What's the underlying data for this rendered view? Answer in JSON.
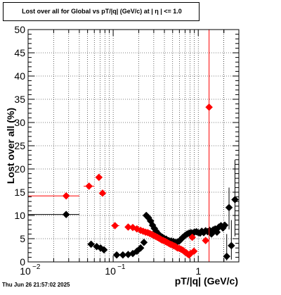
{
  "title": "Lost over all for Global vs pT/|q| (GeV/c) at |  η  | <= 1.0",
  "timestamp": "Thu Jun 26 21:57:02 2025",
  "colors": {
    "black_series": "#000000",
    "red_series": "#ff0000",
    "grid": "#000000"
  },
  "chart_data": {
    "type": "scatter",
    "title": "Lost over all for Global vs pT/|q| (GeV/c) at |  η  | <= 1.0",
    "xlabel": "pT/|q| (GeV/c)",
    "ylabel": "Lost over all (%)",
    "x_scale": "log",
    "xlim": [
      0.01,
      3.0
    ],
    "ylim": [
      0,
      50
    ],
    "grid": true,
    "x_tick_labels": [
      "10",
      "10",
      "1"
    ],
    "x_tick_exponents": [
      "−2",
      "−1",
      ""
    ],
    "y_ticks": [
      0,
      5,
      10,
      15,
      20,
      25,
      30,
      35,
      40,
      45,
      50
    ],
    "series": [
      {
        "color": "#000000",
        "points": [
          {
            "x": 0.028,
            "y": 10.2,
            "xlo": 0.01,
            "xhi": 0.04,
            "ylo": 10.2,
            "yhi": 10.2
          },
          {
            "x": 0.055,
            "y": 3.8,
            "xlo": 0.055,
            "xhi": 0.055,
            "ylo": 3.8,
            "yhi": 3.8
          },
          {
            "x": 0.064,
            "y": 3.3
          },
          {
            "x": 0.071,
            "y": 3.0
          },
          {
            "x": 0.078,
            "y": 2.6
          },
          {
            "x": 0.11,
            "y": 1.5
          },
          {
            "x": 0.13,
            "y": 1.5
          },
          {
            "x": 0.15,
            "y": 1.6
          },
          {
            "x": 0.17,
            "y": 1.8
          },
          {
            "x": 0.19,
            "y": 2.3
          },
          {
            "x": 0.21,
            "y": 3.0
          },
          {
            "x": 0.23,
            "y": 4.2
          },
          {
            "x": 0.245,
            "y": 10.0
          },
          {
            "x": 0.26,
            "y": 9.5
          },
          {
            "x": 0.275,
            "y": 8.8
          },
          {
            "x": 0.29,
            "y": 7.9
          },
          {
            "x": 0.305,
            "y": 7.2
          },
          {
            "x": 0.32,
            "y": 6.6
          },
          {
            "x": 0.34,
            "y": 6.0
          },
          {
            "x": 0.36,
            "y": 5.6
          },
          {
            "x": 0.38,
            "y": 5.3
          },
          {
            "x": 0.4,
            "y": 5.0
          },
          {
            "x": 0.42,
            "y": 4.9
          },
          {
            "x": 0.45,
            "y": 4.6
          },
          {
            "x": 0.48,
            "y": 4.5
          },
          {
            "x": 0.51,
            "y": 4.4
          },
          {
            "x": 0.54,
            "y": 4.2
          },
          {
            "x": 0.57,
            "y": 4.3
          },
          {
            "x": 0.6,
            "y": 4.5
          },
          {
            "x": 0.63,
            "y": 4.9
          },
          {
            "x": 0.66,
            "y": 5.3
          },
          {
            "x": 0.7,
            "y": 5.7
          },
          {
            "x": 0.74,
            "y": 6.0
          },
          {
            "x": 0.78,
            "y": 6.2
          },
          {
            "x": 0.82,
            "y": 6.3
          },
          {
            "x": 0.86,
            "y": 6.2
          },
          {
            "x": 0.9,
            "y": 6.4
          },
          {
            "x": 0.95,
            "y": 6.5
          },
          {
            "x": 1.0,
            "y": 6.3
          },
          {
            "x": 1.05,
            "y": 6.2
          },
          {
            "x": 1.1,
            "y": 6.6
          },
          {
            "x": 1.16,
            "y": 6.3
          },
          {
            "x": 1.22,
            "y": 6.7
          },
          {
            "x": 1.29,
            "y": 6.5
          },
          {
            "x": 1.36,
            "y": 6.8
          },
          {
            "x": 1.43,
            "y": 6.0
          },
          {
            "x": 1.5,
            "y": 6.9
          },
          {
            "x": 1.58,
            "y": 7.1
          },
          {
            "x": 1.66,
            "y": 6.4
          },
          {
            "x": 1.75,
            "y": 7.5
          },
          {
            "x": 1.85,
            "y": 7.8
          },
          {
            "x": 1.95,
            "y": 7.3
          },
          {
            "x": 2.05,
            "y": 7.9
          },
          {
            "x": 2.16,
            "y": 1.2,
            "ylo": 0.3,
            "yhi": 6.0
          },
          {
            "x": 2.3,
            "y": 11.7,
            "ylo": 7.0,
            "yhi": 16.0
          },
          {
            "x": 2.45,
            "y": 3.5,
            "ylo": 0.5,
            "yhi": 9.0
          },
          {
            "x": 2.7,
            "y": 13.4,
            "ylo": 5.5,
            "yhi": 22.0
          }
        ]
      },
      {
        "color": "#ff0000",
        "points": [
          {
            "x": 0.028,
            "y": 14.2,
            "xlo": 0.01,
            "xhi": 0.04
          },
          {
            "x": 0.052,
            "y": 16.3,
            "xlo": 0.045,
            "xhi": 0.06
          },
          {
            "x": 0.068,
            "y": 18.2
          },
          {
            "x": 0.075,
            "y": 14.8
          },
          {
            "x": 0.105,
            "y": 7.8,
            "xlo": 0.095,
            "xhi": 0.118
          },
          {
            "x": 0.15,
            "y": 7.5
          },
          {
            "x": 0.17,
            "y": 7.4
          },
          {
            "x": 0.19,
            "y": 7.1
          },
          {
            "x": 0.21,
            "y": 6.8
          },
          {
            "x": 0.225,
            "y": 6.6
          },
          {
            "x": 0.24,
            "y": 6.4
          },
          {
            "x": 0.255,
            "y": 6.3
          },
          {
            "x": 0.27,
            "y": 6.1
          },
          {
            "x": 0.285,
            "y": 5.9
          },
          {
            "x": 0.3,
            "y": 5.7
          },
          {
            "x": 0.315,
            "y": 5.5
          },
          {
            "x": 0.33,
            "y": 5.3
          },
          {
            "x": 0.345,
            "y": 5.1
          },
          {
            "x": 0.36,
            "y": 4.9
          },
          {
            "x": 0.375,
            "y": 4.7
          },
          {
            "x": 0.39,
            "y": 4.6
          },
          {
            "x": 0.41,
            "y": 4.4
          },
          {
            "x": 0.43,
            "y": 4.2
          },
          {
            "x": 0.45,
            "y": 4.0
          },
          {
            "x": 0.47,
            "y": 3.8
          },
          {
            "x": 0.49,
            "y": 3.7
          },
          {
            "x": 0.51,
            "y": 3.5
          },
          {
            "x": 0.53,
            "y": 3.4
          },
          {
            "x": 0.55,
            "y": 3.2
          },
          {
            "x": 0.57,
            "y": 3.0
          },
          {
            "x": 0.6,
            "y": 2.9
          },
          {
            "x": 0.63,
            "y": 2.7
          },
          {
            "x": 0.66,
            "y": 2.5
          },
          {
            "x": 0.69,
            "y": 2.2
          },
          {
            "x": 0.72,
            "y": 2.0
          },
          {
            "x": 0.75,
            "y": 1.7
          },
          {
            "x": 0.78,
            "y": 1.5
          },
          {
            "x": 0.81,
            "y": 1.8
          },
          {
            "x": 0.85,
            "y": 5.3
          },
          {
            "x": 0.89,
            "y": 2.3
          },
          {
            "x": 1.22,
            "y": 4.6
          },
          {
            "x": 1.34,
            "y": 33.3,
            "ylo": 0,
            "yhi": 50
          }
        ]
      }
    ]
  }
}
